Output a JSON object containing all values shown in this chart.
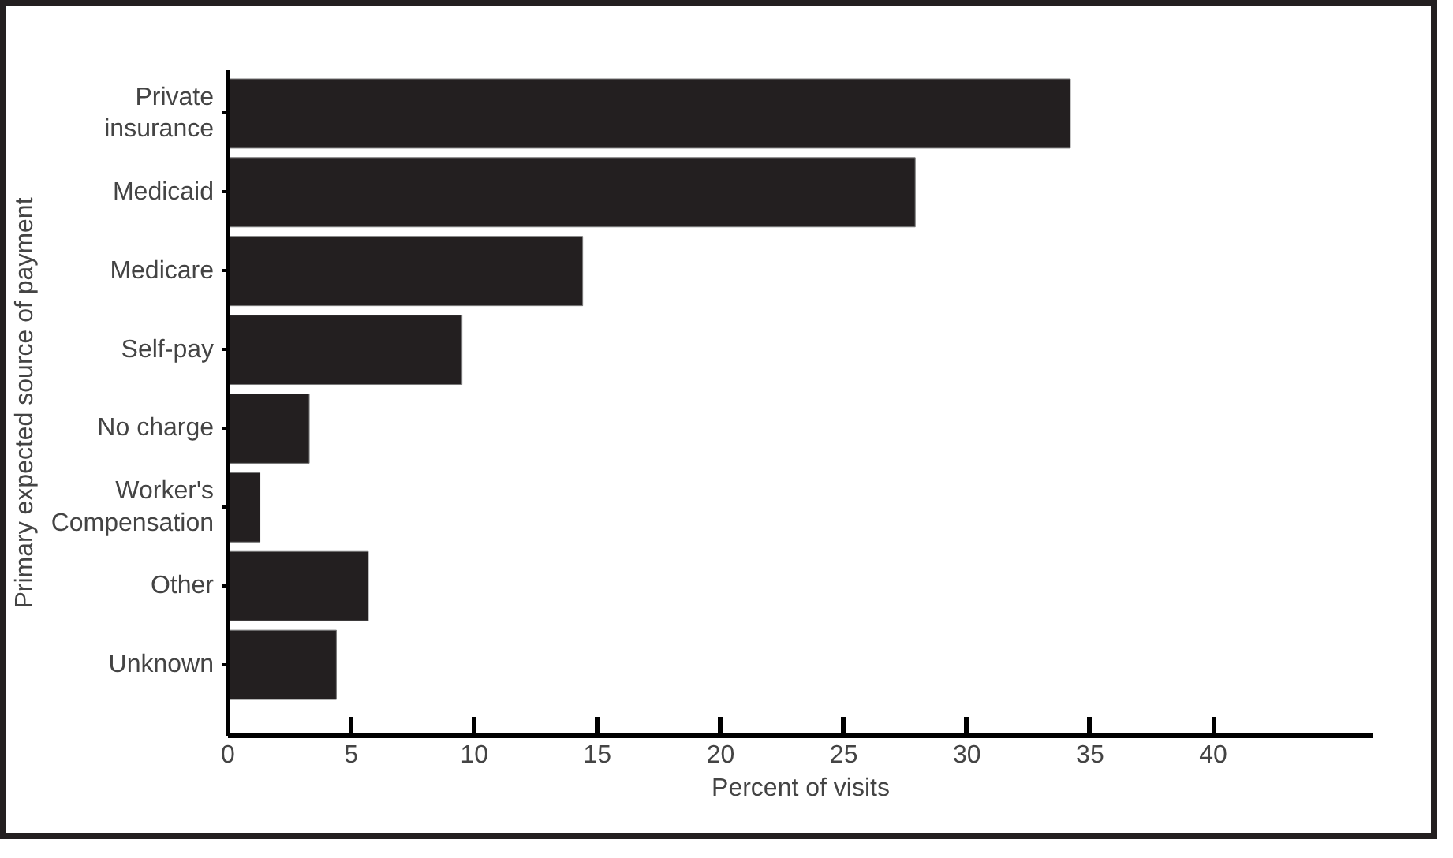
{
  "chart_data": {
    "type": "bar",
    "orientation": "horizontal",
    "categories": [
      "Private\ninsurance",
      "Medicaid",
      "Medicare",
      "Self-pay",
      "No charge",
      "Worker's\nCompensation",
      "Other",
      "Unknown"
    ],
    "values": [
      34.2,
      27.9,
      14.4,
      9.5,
      3.3,
      1.3,
      5.7,
      4.4
    ],
    "color": "#231f20",
    "xlabel": "Percent of visits",
    "ylabel": "Primary expected source of payment",
    "xlim": [
      0,
      46.5
    ],
    "xticks": [
      0,
      5,
      10,
      15,
      20,
      25,
      30,
      35,
      40
    ],
    "grid": false
  }
}
